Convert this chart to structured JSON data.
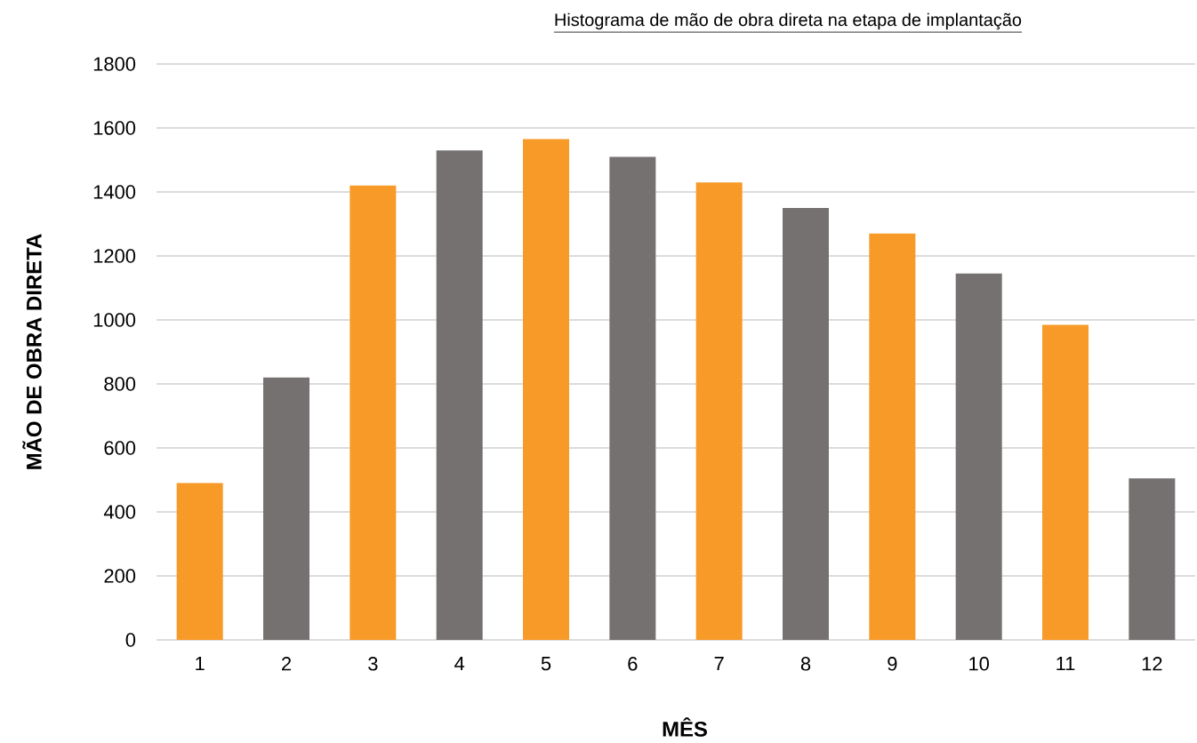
{
  "chart_data": {
    "type": "bar",
    "title": "Histograma de mão de obra direta na etapa de implantação",
    "xlabel": "MÊS",
    "ylabel": "MÃO DE OBRA DIRETA",
    "categories": [
      "1",
      "2",
      "3",
      "4",
      "5",
      "6",
      "7",
      "8",
      "9",
      "10",
      "11",
      "12"
    ],
    "values": [
      490,
      820,
      1420,
      1530,
      1565,
      1510,
      1430,
      1350,
      1270,
      1145,
      985,
      505
    ],
    "colors": [
      "#f79a28",
      "#767171",
      "#f79a28",
      "#767171",
      "#f79a28",
      "#767171",
      "#f79a28",
      "#767171",
      "#f79a28",
      "#767171",
      "#f79a28",
      "#767171"
    ],
    "ylim": [
      0,
      1800
    ],
    "yticks": [
      0,
      200,
      400,
      600,
      800,
      1000,
      1200,
      1400,
      1600,
      1800
    ],
    "grid": "y"
  }
}
